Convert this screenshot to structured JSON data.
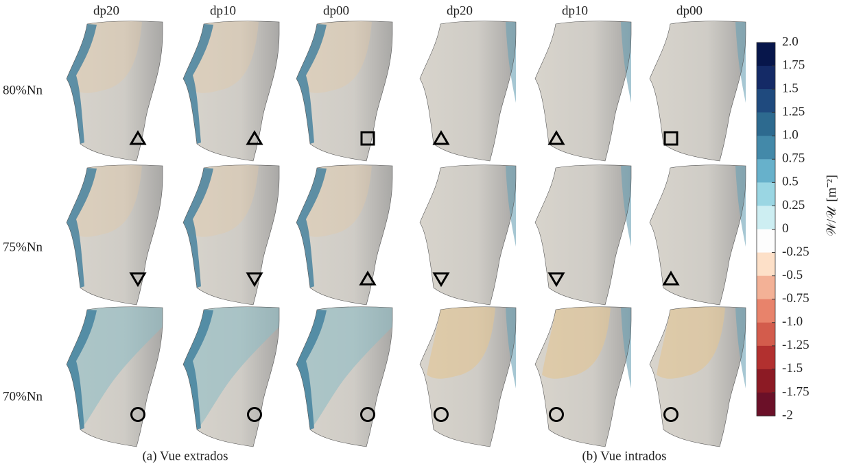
{
  "columns": [
    "dp20",
    "dp10",
    "dp00",
    "dp20",
    "dp10",
    "dp00"
  ],
  "rows": [
    "80%Nn",
    "75%Nn",
    "70%Nn"
  ],
  "captions": [
    "(a) Vue extrados",
    "(b) Vue intrados"
  ],
  "colorbar": {
    "label": "𝒲/𝒰",
    "unit": "[m⁻²]",
    "range": [
      -2,
      2
    ],
    "ticks": [
      {
        "value": 2,
        "label": "2.0"
      },
      1.75,
      1.5,
      1.25,
      {
        "value": 1,
        "label": "1.0"
      },
      0.75,
      0.5,
      0.25,
      0,
      -0.25,
      -0.5,
      -0.75,
      {
        "value": -1,
        "label": "-1.0"
      },
      -1.25,
      -1.5,
      -1.75,
      -2
    ],
    "colors": [
      "#07164b",
      "#142a66",
      "#1f4a7e",
      "#2d6a8f",
      "#4389a9",
      "#67b1cb",
      "#9ad6e3",
      "#cdeef2",
      "#fdfdfd",
      "#fde0c8",
      "#f3b196",
      "#e8836b",
      "#d35c4c",
      "#b2302f",
      "#8c1a24",
      "#6b1028"
    ]
  }
}
